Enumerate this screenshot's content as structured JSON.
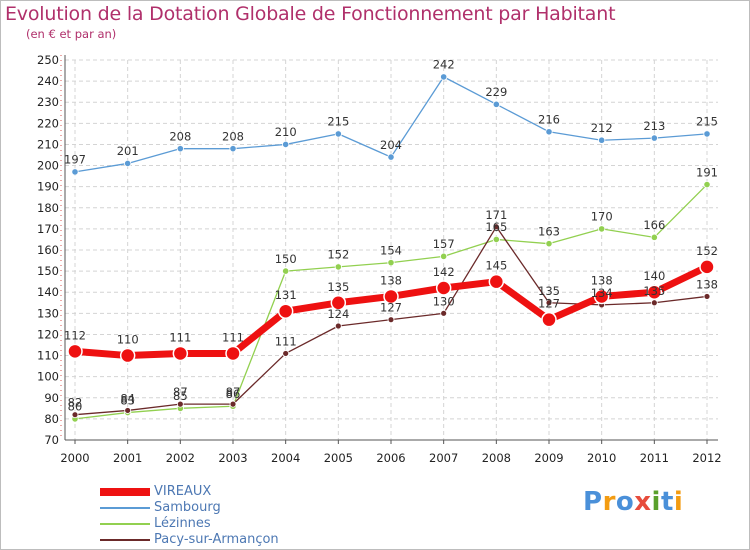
{
  "chart_data": {
    "type": "line",
    "title": "Evolution de la Dotation Globale de Fonctionnement par Habitant",
    "subtitle": "(en € et par an)",
    "x": [
      "2000",
      "2001",
      "2002",
      "2003",
      "2004",
      "2005",
      "2006",
      "2007",
      "2008",
      "2009",
      "2010",
      "2011",
      "2012"
    ],
    "ylim": [
      70,
      250
    ],
    "yticks": [
      70,
      80,
      90,
      100,
      110,
      120,
      130,
      140,
      150,
      160,
      170,
      180,
      190,
      200,
      210,
      220,
      230,
      240,
      250
    ],
    "grid": true,
    "legend_position": "bottom-left",
    "series": [
      {
        "name": "Sambourg",
        "color": "#5b9bd5",
        "values": [
          197,
          201,
          208,
          208,
          210,
          215,
          204,
          242,
          229,
          216,
          212,
          213,
          215
        ]
      },
      {
        "name": "Lézinnes",
        "color": "#92d050",
        "values": [
          80,
          83,
          85,
          86,
          150,
          152,
          154,
          157,
          165,
          163,
          170,
          166,
          191
        ]
      },
      {
        "name": "Pacy-sur-Armançon",
        "color": "#6b2a2a",
        "values": [
          82,
          84,
          87,
          87,
          111,
          124,
          127,
          130,
          171,
          135,
          134,
          135,
          138
        ]
      },
      {
        "name": "VIREAUX",
        "color": "#ee1111",
        "values": [
          112,
          110,
          111,
          111,
          131,
          135,
          138,
          142,
          145,
          127,
          138,
          140,
          152
        ]
      }
    ]
  },
  "legend": [
    {
      "label": "VIREAUX",
      "color": "#ee1111"
    },
    {
      "label": "Sambourg",
      "color": "#5b9bd5"
    },
    {
      "label": "Lézinnes",
      "color": "#92d050"
    },
    {
      "label": "Pacy-sur-Armançon",
      "color": "#6b2a2a"
    }
  ],
  "brand": {
    "text": "Proxiti",
    "letter_colors": [
      "#4a90d9",
      "#f39c12",
      "#4a90d9",
      "#e74c3c",
      "#5aa02c",
      "#4a90d9",
      "#f39c12"
    ]
  }
}
